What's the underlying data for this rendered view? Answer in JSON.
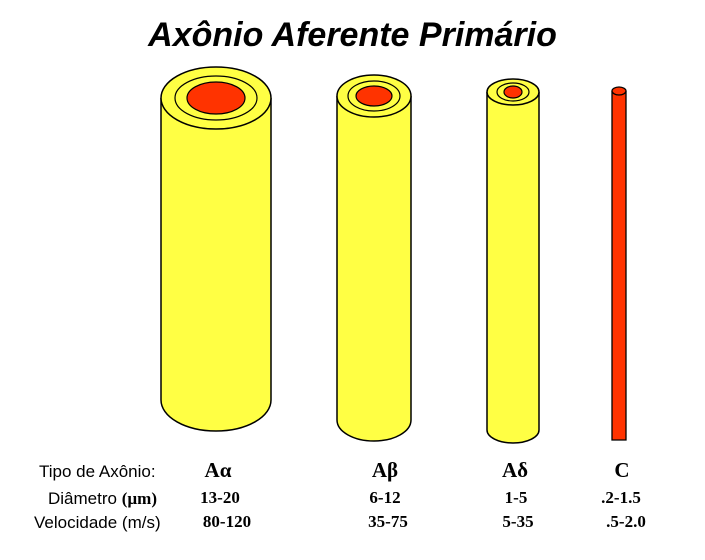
{
  "title": "Axônio Aferente Primário",
  "colors": {
    "myelin": "#ffff44",
    "axon": "#ff3300",
    "outline": "#000000"
  },
  "row_labels": {
    "type": "Tipo de Axônio:",
    "diameter": "Diâmetro",
    "diameter_unit": "(µm)",
    "velocity": "Velocidade (m/s)"
  },
  "axons": [
    {
      "type": "Aα",
      "diameter": "13-20",
      "velocity": "80-120"
    },
    {
      "type": "Aβ",
      "diameter": "6-12",
      "velocity": "35-75"
    },
    {
      "type": "Aδ",
      "diameter": "1-5",
      "velocity": "5-35"
    },
    {
      "type": "C",
      "diameter": ".2-1.5",
      "velocity": ".5-2.0"
    }
  ]
}
